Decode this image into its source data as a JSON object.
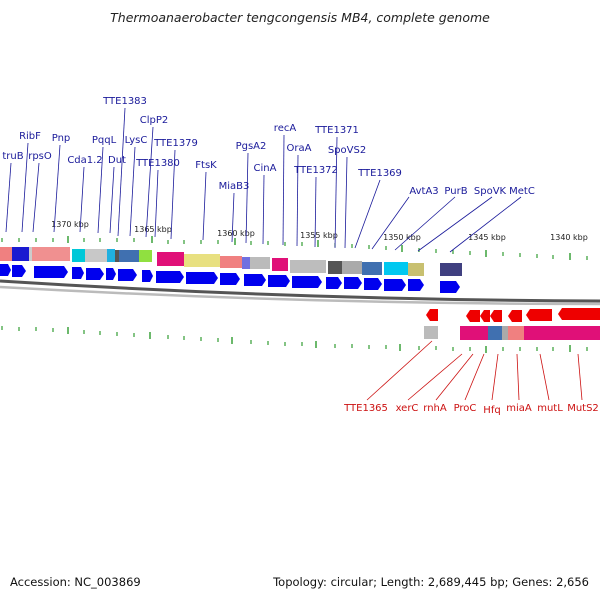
{
  "title": "Thermoanaerobacter tengcongensis MB4, complete genome",
  "footer": {
    "accession": "Accession: NC_003869",
    "summary": "Topology: circular; Length: 2,689,445 bp; Genes: 2,656"
  },
  "colors": {
    "top_label": "#1a1a9a",
    "bottom_label": "#cc1111",
    "forward_gene": "#0000ee",
    "reverse_gene": "#ee0000",
    "tick": "#0a8a0a"
  },
  "scale_labels": [
    "1370 kbp",
    "1365 kbp",
    "1360 kbp",
    "1355 kbp",
    "1350 kbp",
    "1345 kbp",
    "1340 kbp"
  ],
  "top_genes": [
    "truB",
    "RibF",
    "rpsO",
    "Pnp",
    "Cda1.2",
    "PqqL",
    "Dut",
    "TTE1383",
    "LysC",
    "ClpP2",
    "TTE1380",
    "TTE1379",
    "FtsK",
    "MiaB3",
    "PgsA2",
    "CinA",
    "recA",
    "OraA",
    "TTE1372",
    "TTE1371",
    "SpoVS2",
    "TTE1369",
    "AvtA3",
    "PurB",
    "SpoVK",
    "MetC"
  ],
  "bottom_genes": [
    "TTE1365",
    "xerC",
    "rnhA",
    "ProC",
    "Hfq",
    "miaA",
    "mutL",
    "MutS2"
  ]
}
